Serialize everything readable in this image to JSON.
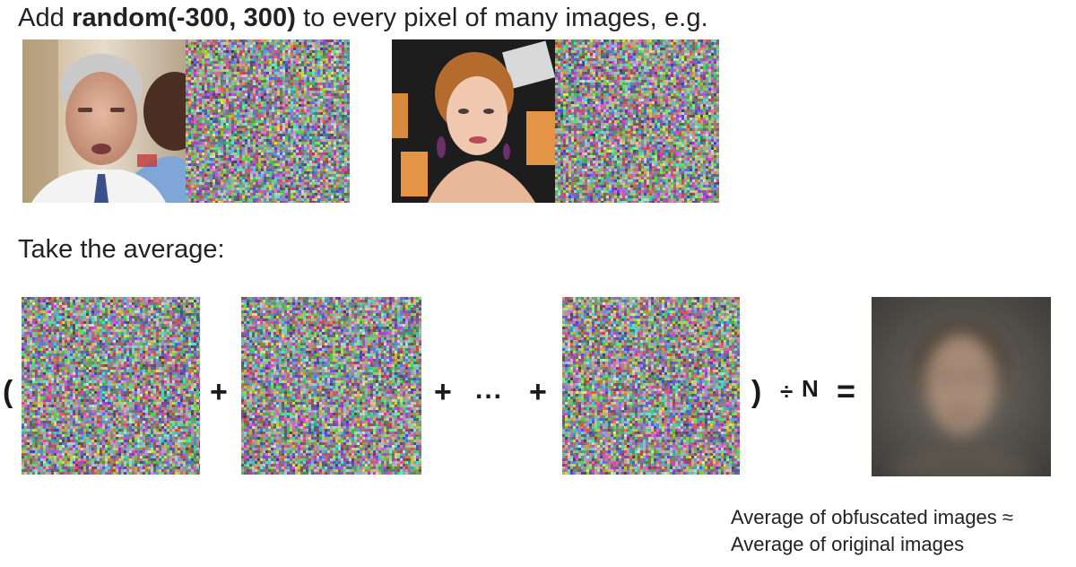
{
  "heading": {
    "prefix": "Add ",
    "emphasis": "random(-300, 300)",
    "suffix": " to every pixel of many images, e.g."
  },
  "subheading": "Take the average:",
  "operators": {
    "open_paren": "(",
    "plus_1": "+",
    "plus_2": "+",
    "ellipsis": "...",
    "plus_3": "+",
    "close_paren": ")",
    "divide": "÷",
    "n": "N",
    "equals": "="
  },
  "caption": {
    "line1": "Average of obfuscated images ≈",
    "line2": "Average of original images"
  }
}
